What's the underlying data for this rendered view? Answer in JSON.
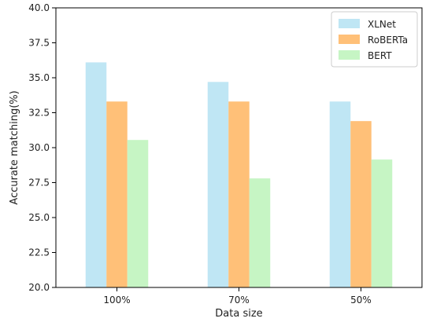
{
  "chart_data": {
    "type": "bar",
    "categories": [
      "100%",
      "70%",
      "50%"
    ],
    "series": [
      {
        "name": "XLNet",
        "color": "#bfe6f4",
        "values": [
          36.1,
          34.7,
          33.3
        ]
      },
      {
        "name": "RoBERTa",
        "color": "#ffc078",
        "values": [
          33.3,
          33.3,
          31.9
        ]
      },
      {
        "name": "BERT",
        "color": "#c6f5c4",
        "values": [
          30.55,
          27.8,
          29.15
        ]
      }
    ],
    "xlabel": "Data size",
    "ylabel": "Accurate matching(%)",
    "ylim": [
      20.0,
      40.0
    ],
    "yticks": [
      "20.0",
      "22.5",
      "25.0",
      "27.5",
      "30.0",
      "32.5",
      "35.0",
      "37.5",
      "40.0"
    ],
    "grid": false,
    "legend_position": "top-right"
  }
}
